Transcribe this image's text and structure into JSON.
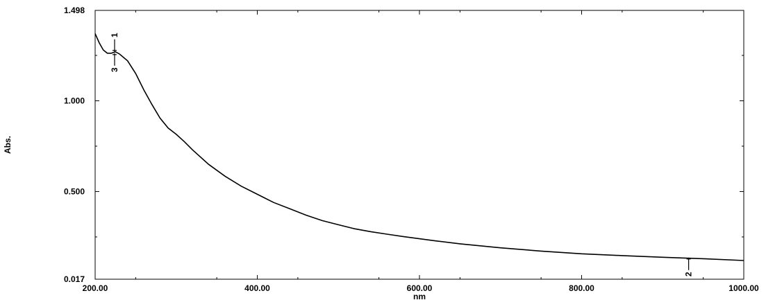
{
  "chart_data": {
    "type": "line",
    "xlabel": "nm",
    "ylabel": "Abs.",
    "xlim": [
      200,
      1000
    ],
    "ylim": [
      0.017,
      1.498
    ],
    "x_ticks": [
      200,
      400,
      600,
      800,
      1000
    ],
    "x_tick_labels": [
      "200.00",
      "400.00",
      "600.00",
      "800.00",
      "1000.00"
    ],
    "y_ticks": [
      0.017,
      0.5,
      1.0,
      1.498
    ],
    "y_tick_labels": [
      "0.017",
      "0.500",
      "1.000",
      "1.498"
    ],
    "grid": false,
    "line_color": "#000000",
    "series": [
      {
        "x": [
          200,
          205,
          210,
          215,
          220,
          225,
          230,
          240,
          250,
          260,
          270,
          280,
          290,
          300,
          310,
          320,
          340,
          360,
          380,
          400,
          420,
          440,
          460,
          480,
          500,
          520,
          540,
          560,
          580,
          600,
          620,
          650,
          700,
          750,
          800,
          850,
          900,
          950,
          1000
        ],
        "y": [
          1.37,
          1.32,
          1.28,
          1.262,
          1.262,
          1.27,
          1.258,
          1.22,
          1.15,
          1.06,
          0.98,
          0.905,
          0.85,
          0.815,
          0.775,
          0.73,
          0.65,
          0.585,
          0.53,
          0.485,
          0.44,
          0.405,
          0.37,
          0.34,
          0.317,
          0.295,
          0.279,
          0.265,
          0.252,
          0.24,
          0.228,
          0.212,
          0.19,
          0.172,
          0.157,
          0.147,
          0.138,
          0.13,
          0.12
        ]
      }
    ],
    "peaks": [
      {
        "label": "1",
        "x": 224,
        "y": 1.27,
        "side": "above"
      },
      {
        "label": "3",
        "x": 224,
        "y": 1.262,
        "side": "below"
      },
      {
        "label": "2",
        "x": 932,
        "y": 0.136,
        "side": "below"
      }
    ]
  }
}
